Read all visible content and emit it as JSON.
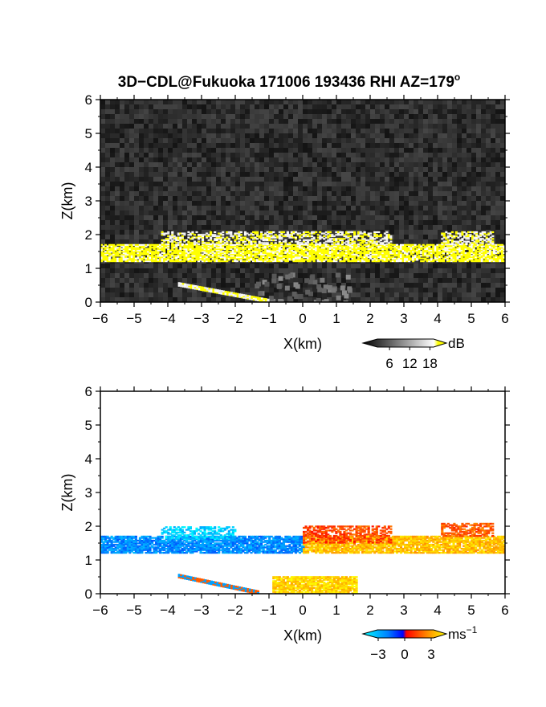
{
  "title": "3D−CDL@Fukuoka 171006 193436 RHI AZ=179",
  "title_superscript": "o",
  "chart_data": [
    {
      "type": "heatmap",
      "quantity": "backscatter intensity",
      "xlabel": "X(km)",
      "ylabel": "Z(km)",
      "xlim": [
        -6,
        6
      ],
      "ylim": [
        0,
        6
      ],
      "xticks": [
        "−6",
        "−5",
        "−4",
        "−3",
        "−2",
        "−1",
        "0",
        "1",
        "2",
        "3",
        "4",
        "5",
        "6"
      ],
      "yticks": [
        "0",
        "1",
        "2",
        "3",
        "4",
        "5",
        "6"
      ],
      "colorbar": {
        "unit": "dB",
        "ticks": [
          "6",
          "12",
          "18"
        ],
        "range": [
          0,
          21
        ]
      },
      "background": "dark noise",
      "features": [
        {
          "label": "main cloud layer",
          "x": [
            -6.0,
            6.0
          ],
          "z": [
            1.2,
            1.7
          ],
          "value_db": 21
        },
        {
          "label": "upper cloud tops",
          "x": [
            -4.2,
            2.6
          ],
          "z": [
            1.7,
            2.1
          ],
          "value_db": 20
        },
        {
          "label": "far cloud tops",
          "x": [
            4.1,
            5.6
          ],
          "z": [
            1.7,
            2.1
          ],
          "value_db": 20
        },
        {
          "label": "low slanted band",
          "x": [
            -3.7,
            -1.0
          ],
          "z": [
            0.0,
            0.5
          ],
          "value_db": 20
        }
      ]
    },
    {
      "type": "heatmap",
      "quantity": "Doppler velocity",
      "xlabel": "X(km)",
      "ylabel": "Z(km)",
      "xlim": [
        -6,
        6
      ],
      "ylim": [
        0,
        6
      ],
      "xticks": [
        "−6",
        "−5",
        "−4",
        "−3",
        "−2",
        "−1",
        "0",
        "1",
        "2",
        "3",
        "4",
        "5",
        "6"
      ],
      "yticks": [
        "0",
        "1",
        "2",
        "3",
        "4",
        "5",
        "6"
      ],
      "colorbar": {
        "unit": "ms",
        "unit_superscript": "−1",
        "ticks": [
          "−3",
          "0",
          "3"
        ],
        "range": [
          -4,
          4
        ]
      },
      "features": [
        {
          "label": "main layer left",
          "x": [
            -6.0,
            0.0
          ],
          "z": [
            1.2,
            1.7
          ],
          "velocity": -2.2
        },
        {
          "label": "main layer right",
          "x": [
            0.0,
            6.0
          ],
          "z": [
            1.2,
            1.7
          ],
          "velocity": 3.0
        },
        {
          "label": "upper tops left",
          "x": [
            -4.2,
            -2.0
          ],
          "z": [
            1.6,
            2.0
          ],
          "velocity": -3.3
        },
        {
          "label": "upper tops right",
          "x": [
            0.0,
            2.6
          ],
          "z": [
            1.5,
            2.0
          ],
          "velocity": 1.2
        },
        {
          "label": "far tops",
          "x": [
            4.1,
            5.6
          ],
          "z": [
            1.7,
            2.1
          ],
          "velocity": 1.5
        },
        {
          "label": "low slanted band",
          "x": [
            -3.7,
            -1.3
          ],
          "z": [
            0.0,
            0.5
          ],
          "velocity": 0.5
        },
        {
          "label": "near-ground echoes",
          "x": [
            -0.9,
            1.6
          ],
          "z": [
            0.0,
            0.5
          ],
          "velocity": 3.3
        }
      ]
    }
  ],
  "colors": {
    "intensity_scale": [
      "#000000",
      "#ffffff",
      "#ffff00"
    ],
    "velocity_scale": [
      "#00ffff",
      "#0000ff",
      "#ff0000",
      "#ffff00"
    ]
  }
}
